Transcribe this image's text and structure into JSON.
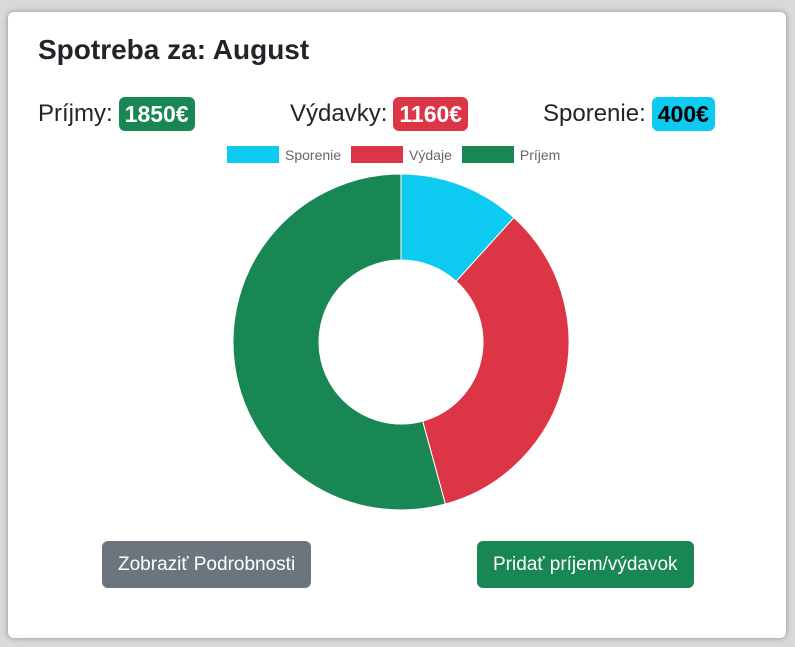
{
  "page": {
    "title": "Spotreba za: August"
  },
  "stats": [
    {
      "label": "Príjmy:",
      "value": "1850€",
      "color": "#198754",
      "text_color": "#ffffff"
    },
    {
      "label": "Výdavky:",
      "value": "1160€",
      "color": "#dc3545",
      "text_color": "#ffffff"
    },
    {
      "label": "Sporenie:",
      "value": "400€",
      "color": "#0dcaf0",
      "text_color": "#000000"
    }
  ],
  "chart_data": {
    "type": "pie",
    "donut": true,
    "title": "",
    "legend_position": "top",
    "labels": [
      "Sporenie",
      "Výdaje",
      "Príjem"
    ],
    "values": [
      400,
      1160,
      1850
    ],
    "colors": [
      "#0dcaf0",
      "#dc3545",
      "#198754"
    ]
  },
  "buttons": {
    "details_label": "Zobraziť Podrobnosti",
    "details_color": "#6c757d",
    "add_label": "Pridať príjem/výdavok",
    "add_color": "#198754"
  }
}
